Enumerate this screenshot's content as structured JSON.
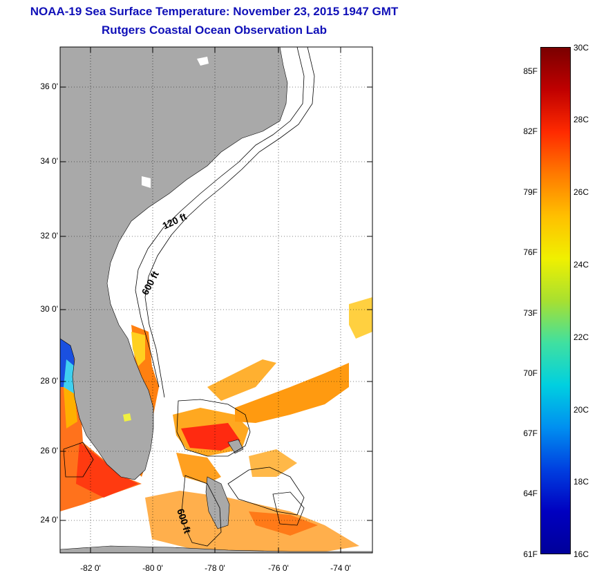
{
  "title": "NOAA-19 Sea Surface Temperature:  November 23, 2015 1947 GMT",
  "subtitle": "Rutgers Coastal Ocean Observation Lab",
  "latitude_labels": [
    "36 0'",
    "34 0'",
    "32 0'",
    "30 0'",
    "28 0'",
    "26 0'",
    "24 0'"
  ],
  "longitude_labels": [
    "-82 0'",
    "-80 0'",
    "-78 0'",
    "-76 0'",
    "-74 0'"
  ],
  "isobath_labels": [
    "120 ft",
    "600 ft",
    "600 ft"
  ],
  "colorbar": {
    "fahrenheit": [
      "85F",
      "82F",
      "79F",
      "76F",
      "73F",
      "70F",
      "67F",
      "64F",
      "61F"
    ],
    "celsius": [
      "30C",
      "28C",
      "26C",
      "24C",
      "22C",
      "20C",
      "18C",
      "16C"
    ],
    "colors": [
      "#7a0000",
      "#c00000",
      "#ff2a00",
      "#ff7a00",
      "#ffc000",
      "#f0f000",
      "#a8e030",
      "#40e0a0",
      "#00d0e0",
      "#0090f0",
      "#0040e0",
      "#0000c0",
      "#00009a"
    ]
  },
  "colors": {
    "title": "#1010b8",
    "land": "#a9a9a9",
    "isobath": "#000000"
  }
}
